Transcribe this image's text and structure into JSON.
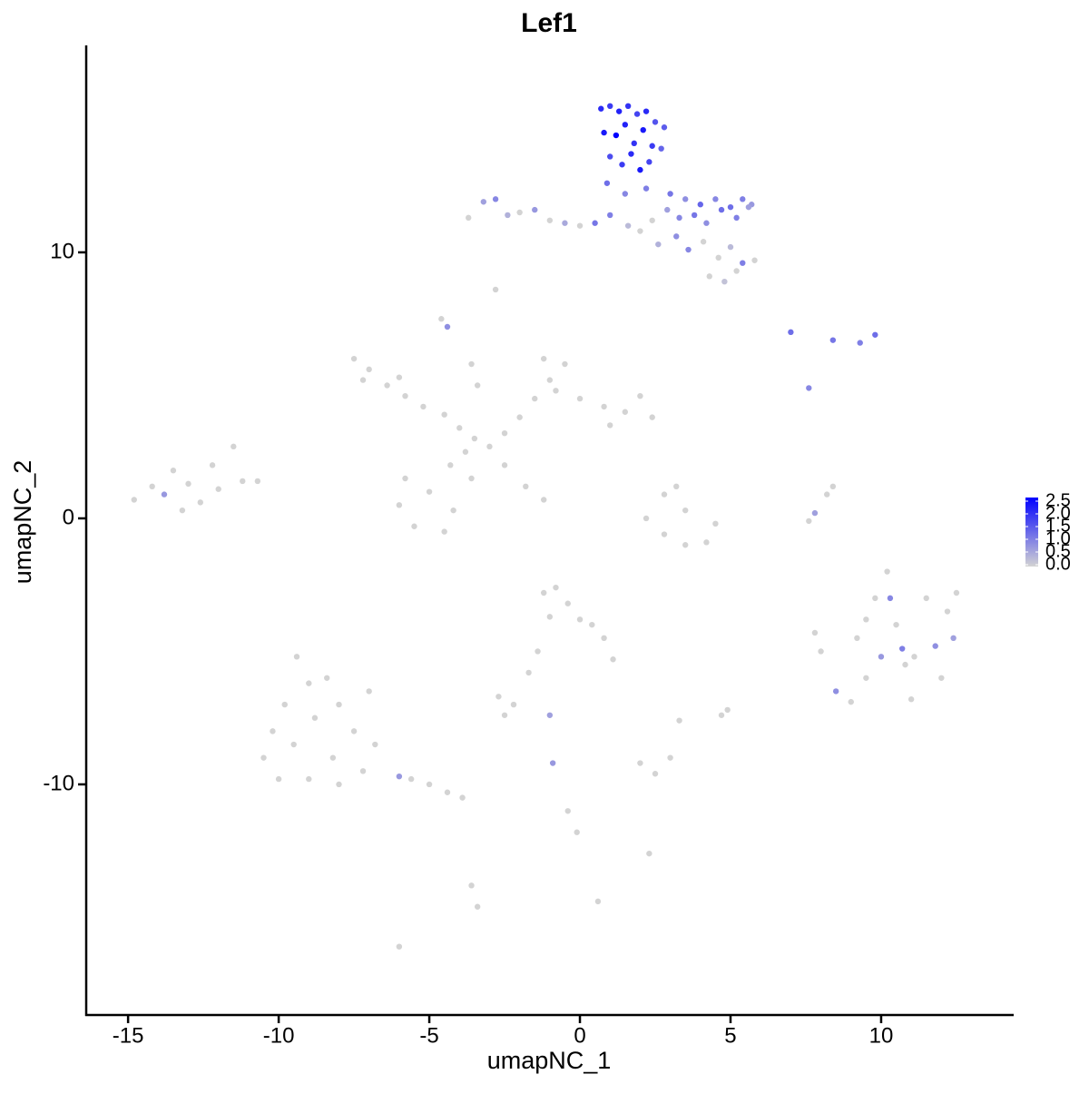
{
  "chart_data": {
    "type": "scatter",
    "title": "Lef1",
    "x_label": "umapNC_1",
    "y_label": "umapNC_2",
    "xlim": [
      -16.39,
      14.4
    ],
    "ylim": [
      -18.67,
      17.78
    ],
    "xticks": [
      -15,
      -10,
      -5,
      0,
      5,
      10
    ],
    "yticks": [
      -10,
      0,
      10
    ],
    "color_low": "#d3d3d3",
    "color_high": "#0000ff",
    "colorbar_lim": [
      0,
      2.5
    ],
    "colorbar_ticks": [
      {
        "value": 0,
        "label": "0.0"
      },
      {
        "value": 0.5,
        "label": "0.5"
      },
      {
        "value": 1,
        "label": "1.0"
      },
      {
        "value": 1.5,
        "label": "1.5"
      },
      {
        "value": 2,
        "label": "2.0"
      },
      {
        "value": 2.5,
        "label": "2.5"
      }
    ],
    "x": [
      0.7,
      1.0,
      1.3,
      1.6,
      1.9,
      2.2,
      2.5,
      2.8,
      0.8,
      1.2,
      1.5,
      1.8,
      2.1,
      2.4,
      2.7,
      1.0,
      1.4,
      1.7,
      2.0,
      2.3,
      0.9,
      1.5,
      2.2,
      3.0,
      3.5,
      4.0,
      4.5,
      5.0,
      5.4,
      5.7,
      -3.7,
      -3.2,
      -2.8,
      -2.4,
      -2.0,
      -1.5,
      -1.0,
      -0.5,
      0.0,
      0.5,
      1.0,
      1.6,
      2.4,
      2.9,
      3.3,
      3.8,
      4.2,
      4.7,
      5.2,
      5.6,
      2.0,
      2.6,
      3.2,
      3.6,
      4.1,
      4.6,
      5.0,
      5.4,
      5.8,
      4.3,
      4.8,
      5.2,
      -2.8,
      -4.6,
      -4.4,
      7.0,
      8.4,
      9.3,
      9.8,
      7.6,
      -7.5,
      -7.0,
      -6.4,
      -5.8,
      -5.2,
      -7.2,
      -6.0,
      -4.5,
      -4.0,
      -3.5,
      -3.0,
      -3.8,
      -4.3,
      -2.5,
      -2.0,
      -1.5,
      -1.0,
      -1.2,
      -0.5,
      -0.8,
      -3.4,
      -3.6,
      0.0,
      0.8,
      1.5,
      2.0,
      2.4,
      1.0,
      -6.0,
      -5.5,
      -5.0,
      -4.2,
      -4.5,
      -3.6,
      -5.8,
      -2.5,
      -1.8,
      -1.2,
      -14.8,
      -14.2,
      -13.8,
      -13.5,
      -13.0,
      -12.6,
      -12.2,
      -12.0,
      -11.5,
      -11.2,
      -10.7,
      -13.2,
      2.8,
      3.2,
      2.2,
      2.8,
      3.5,
      4.2,
      4.5,
      3.5,
      7.6,
      7.8,
      8.2,
      8.4,
      7.8,
      8.0,
      8.5,
      9.0,
      9.5,
      9.2,
      9.8,
      10.2,
      10.5,
      10.8,
      11.0,
      11.5,
      11.8,
      12.2,
      12.5,
      12.4,
      12.0,
      10.3,
      9.5,
      10.7,
      11.1,
      10.0,
      -1.2,
      -0.8,
      -0.4,
      0.0,
      0.4,
      0.8,
      1.1,
      -1.0,
      -1.4,
      -1.7,
      -9.4,
      -9.0,
      -8.4,
      -9.8,
      -10.2,
      -10.5,
      -9.5,
      -8.8,
      -8.0,
      -7.5,
      -8.2,
      -9.0,
      -8.0,
      -7.2,
      -7.0,
      -6.8,
      -6.0,
      -5.6,
      -5.0,
      -4.4,
      -3.9,
      -10.0,
      -2.7,
      -2.2,
      -2.5,
      -1.0,
      2.0,
      2.5,
      3.0,
      3.3,
      4.9,
      4.7,
      -0.9,
      -0.4,
      -0.1,
      2.3,
      -3.4,
      -3.6,
      -6.0,
      0.6
    ],
    "y": [
      15.4,
      15.5,
      15.3,
      15.5,
      15.2,
      15.3,
      14.9,
      14.7,
      14.5,
      14.4,
      14.8,
      14.1,
      14.6,
      14.0,
      13.9,
      13.6,
      13.3,
      13.7,
      13.1,
      13.4,
      12.6,
      12.2,
      12.4,
      12.2,
      12.0,
      11.8,
      12.0,
      11.7,
      12.0,
      11.8,
      11.3,
      11.9,
      12.0,
      11.4,
      11.5,
      11.6,
      11.2,
      11.1,
      11.0,
      11.1,
      11.4,
      11.0,
      11.2,
      11.6,
      11.3,
      11.4,
      11.1,
      11.6,
      11.3,
      11.7,
      10.8,
      10.3,
      10.6,
      10.1,
      10.4,
      9.8,
      10.2,
      9.6,
      9.7,
      9.1,
      8.9,
      9.3,
      8.6,
      7.5,
      7.2,
      7.0,
      6.7,
      6.6,
      6.9,
      4.9,
      6.0,
      5.6,
      5.0,
      4.6,
      4.2,
      5.2,
      5.3,
      3.9,
      3.4,
      3.0,
      2.7,
      2.5,
      2.0,
      3.2,
      3.8,
      4.5,
      5.2,
      6.0,
      5.8,
      4.8,
      5.0,
      5.8,
      4.5,
      4.2,
      4.0,
      4.6,
      3.8,
      3.5,
      0.5,
      -0.3,
      1.0,
      0.3,
      -0.5,
      1.5,
      1.5,
      2.0,
      1.2,
      0.7,
      0.7,
      1.2,
      0.9,
      1.8,
      1.3,
      0.6,
      2.0,
      1.1,
      2.7,
      1.4,
      1.4,
      0.3,
      0.9,
      1.2,
      0.0,
      -0.6,
      -1.0,
      -0.9,
      -0.2,
      0.3,
      -0.1,
      0.2,
      0.9,
      1.2,
      -4.3,
      -5.0,
      -6.5,
      -6.9,
      -6.0,
      -4.5,
      -3.0,
      -2.0,
      -4.0,
      -5.5,
      -6.8,
      -3.0,
      -4.8,
      -3.5,
      -2.8,
      -4.5,
      -6.0,
      -3.0,
      -3.8,
      -4.9,
      -5.2,
      -5.2,
      -2.8,
      -2.6,
      -3.2,
      -3.8,
      -4.0,
      -4.5,
      -5.3,
      -3.7,
      -5.0,
      -5.8,
      -5.2,
      -6.2,
      -6.0,
      -7.0,
      -8.0,
      -9.0,
      -8.5,
      -7.5,
      -7.0,
      -8.0,
      -9.0,
      -9.8,
      -10.0,
      -9.5,
      -6.5,
      -8.5,
      -9.7,
      -9.8,
      -10.0,
      -10.3,
      -10.5,
      -9.8,
      -6.7,
      -7.0,
      -7.4,
      -7.4,
      -9.2,
      -9.6,
      -9.0,
      -7.6,
      -7.2,
      -7.4,
      -9.2,
      -11.0,
      -11.8,
      -12.6,
      -14.6,
      -13.8,
      -16.1,
      -14.4
    ],
    "values": [
      2.0,
      1.8,
      2.1,
      1.9,
      1.7,
      2.0,
      1.5,
      1.4,
      2.2,
      2.5,
      2.1,
      1.9,
      2.2,
      1.8,
      1.3,
      1.6,
      1.8,
      2.0,
      2.2,
      1.7,
      1.2,
      0.9,
      1.0,
      1.1,
      0.8,
      1.3,
      0.9,
      1.2,
      1.0,
      0.7,
      0,
      0.6,
      0.9,
      0.4,
      0,
      0.7,
      0,
      0.5,
      0,
      1.1,
      1.0,
      0.3,
      0,
      0.6,
      0.9,
      1.1,
      0.8,
      1.2,
      1.0,
      0.6,
      0,
      0.4,
      0.8,
      0.9,
      0,
      0,
      0.3,
      1.0,
      0,
      0,
      0.2,
      0,
      0,
      0,
      0.8,
      1.2,
      1.1,
      1.0,
      1.2,
      0.9,
      0,
      0,
      0,
      0,
      0,
      0,
      0,
      0,
      0,
      0,
      0,
      0,
      0,
      0,
      0,
      0,
      0,
      0,
      0,
      0,
      0,
      0,
      0,
      0,
      0,
      0,
      0,
      0,
      0,
      0,
      0,
      0,
      0,
      0,
      0,
      0,
      0,
      0,
      0,
      0,
      0.7,
      0,
      0,
      0,
      0,
      0,
      0,
      0,
      0,
      0,
      0,
      0,
      0,
      0,
      0,
      0,
      0,
      0,
      0,
      0.6,
      0,
      0,
      0,
      0,
      0.8,
      0,
      0,
      0,
      0,
      0,
      0,
      0,
      0,
      0,
      0.8,
      0,
      0,
      0.6,
      0,
      0.9,
      0,
      1.0,
      0,
      0.7,
      0,
      0,
      0,
      0,
      0,
      0,
      0,
      0,
      0,
      0,
      0,
      0,
      0,
      0,
      0,
      0,
      0,
      0,
      0,
      0,
      0,
      0,
      0,
      0,
      0,
      0,
      0.7,
      0,
      0,
      0,
      0,
      0,
      0,
      0,
      0,
      0.6,
      0,
      0,
      0,
      0,
      0,
      0,
      0.7,
      0,
      0,
      0,
      0,
      0,
      0,
      0
    ]
  }
}
